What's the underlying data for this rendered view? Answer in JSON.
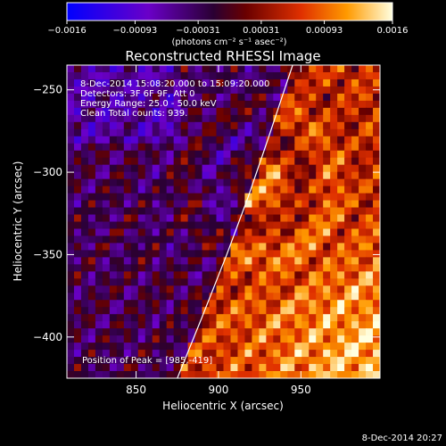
{
  "chart_data": {
    "type": "heatmap",
    "title": "Reconstructed RHESSI Image",
    "xlabel": "Heliocentric X (arcsec)",
    "ylabel": "Heliocentric Y (arcsec)",
    "xlim": [
      808,
      998
    ],
    "ylim": [
      -425,
      -235
    ],
    "x_ticks": [
      850,
      900,
      950
    ],
    "y_ticks": [
      -250,
      -300,
      -350,
      -400
    ],
    "x_tick_labels": [
      "850",
      "900",
      "950"
    ],
    "y_tick_labels": [
      "-250",
      "-300",
      "-350",
      "-400"
    ],
    "colorbar": {
      "range": [
        -0.0016,
        0.0016
      ],
      "ticks": [
        -0.0016,
        -0.00093,
        -0.00031,
        0.00031,
        0.00093,
        0.0016
      ],
      "tick_labels": [
        "-0.0016",
        "-0.00093",
        "-0.00031",
        "0.00031",
        "0.00093",
        "0.0016"
      ],
      "units_label": "(photons cm⁻² s⁻¹ asec⁻²)"
    },
    "annotations": [
      "8-Dec-2014 15:08:20.000 to 15:09:20.000",
      "Detectors: 3F 6F 9F, Att 0",
      "Energy Range: 25.0 - 50.0 keV",
      "Clean    Total counts: 939."
    ],
    "peak_label": "Position of Peak = [985,-419]",
    "peak": [
      985,
      -419
    ],
    "limb_curve": [
      [
        875,
        -425
      ],
      [
        890,
        -388
      ],
      [
        905,
        -350
      ],
      [
        918,
        -315
      ],
      [
        930,
        -280
      ],
      [
        940,
        -250
      ],
      [
        945,
        -235
      ]
    ],
    "grid": false
  },
  "footer_timestamp": "8-Dec-2014 20:27"
}
